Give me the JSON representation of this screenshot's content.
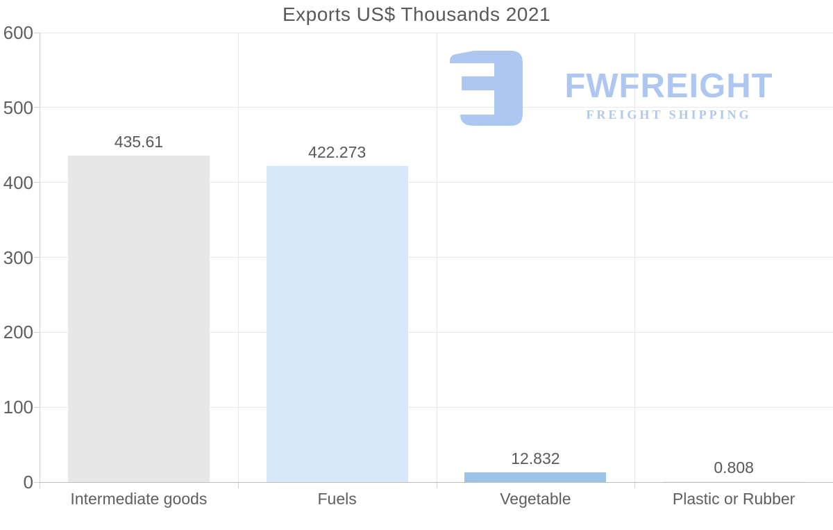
{
  "title": "Exports US$ Thousands 2021",
  "watermark": {
    "brand": "FWFREIGHT",
    "tagline": "FREIGHT SHIPPING",
    "logo_icon": "fwfreight-f-mark",
    "color": "#a9c5f0"
  },
  "colors": {
    "bar_colors": [
      "#e7e7e7",
      "#d7e9f8",
      "#9dc3e7",
      "#edf1ed"
    ],
    "grid": "#e8e8e8",
    "y_axis": "#cfcfcf",
    "x_axis": "#b9bdbc",
    "text": "#595959"
  },
  "chart_data": {
    "type": "bar",
    "title": "Exports US$ Thousands 2021",
    "categories": [
      "Intermediate goods",
      "Fuels",
      "Vegetable",
      "Plastic or Rubber"
    ],
    "values": [
      435.61,
      422.273,
      12.832,
      0.808
    ],
    "value_labels": [
      "435.61",
      "422.273",
      "12.832",
      "0.808"
    ],
    "bar_colors": [
      "#e7e7e7",
      "#d7e9f8",
      "#9dc3e7",
      "#edf1ed"
    ],
    "xlabel": "",
    "ylabel": "",
    "ylim": [
      0,
      600
    ],
    "y_ticks": [
      0,
      100,
      200,
      300,
      400,
      500,
      600
    ],
    "y_tick_labels": [
      "0",
      "100",
      "200",
      "300",
      "400",
      "500",
      "600"
    ],
    "grid": "horizontal gridlines at y ticks, vertical gridlines at category boundaries",
    "legend": "none"
  }
}
